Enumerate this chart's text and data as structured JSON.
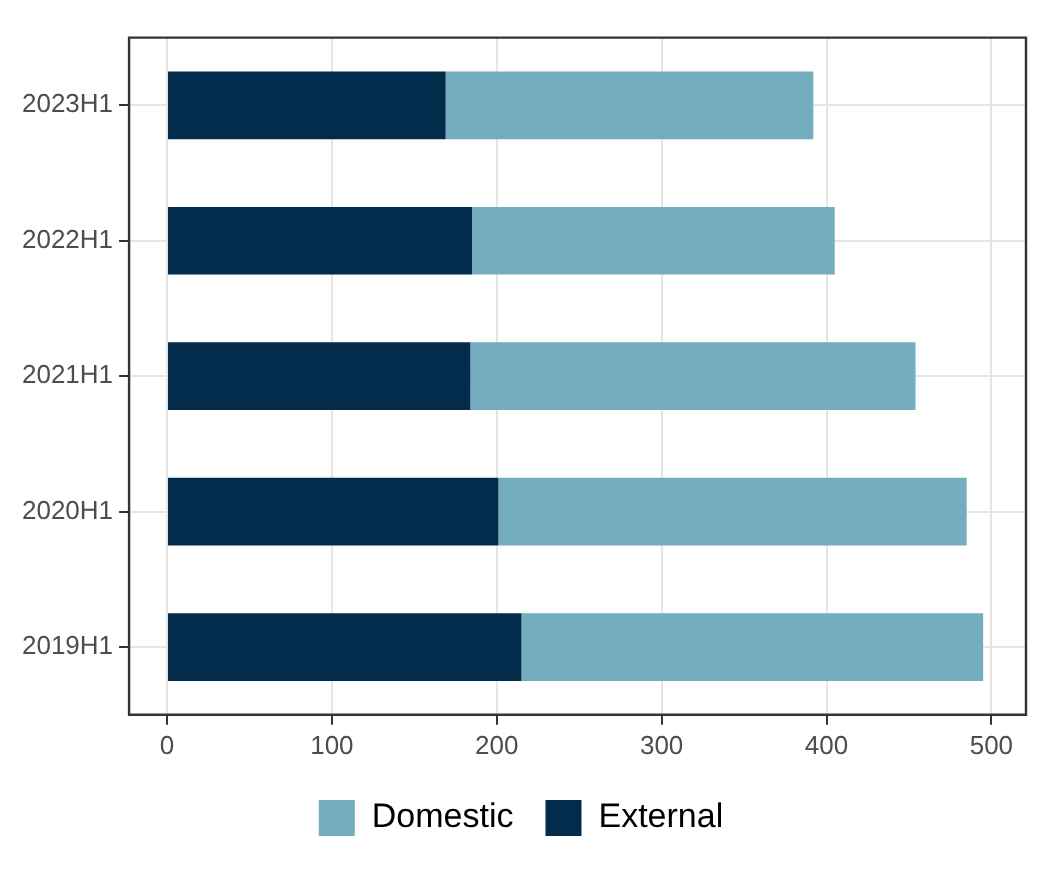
{
  "chart_data": {
    "type": "bar",
    "orientation": "horizontal",
    "stacked": true,
    "categories": [
      "2023H1",
      "2022H1",
      "2021H1",
      "2020H1",
      "2019H1"
    ],
    "series": [
      {
        "name": "External",
        "color": "#022b4c",
        "values": [
          169,
          185,
          184,
          201,
          215
        ]
      },
      {
        "name": "Domestic",
        "color": "#74adbd",
        "values": [
          223,
          220,
          270,
          284,
          280
        ]
      }
    ],
    "xlim": [
      -23,
      521
    ],
    "xticks": [
      0,
      100,
      200,
      300,
      400,
      500
    ],
    "grid": true,
    "legend": "bottom"
  }
}
